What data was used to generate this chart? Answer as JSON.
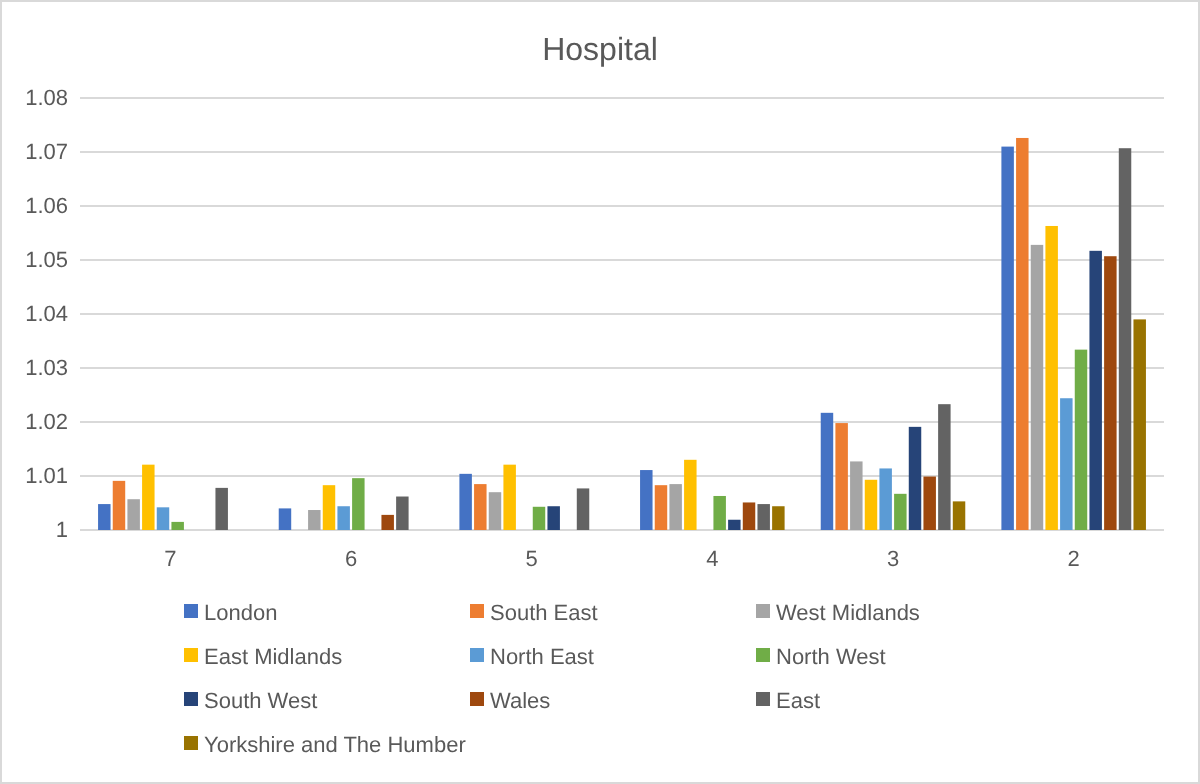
{
  "chart_data": {
    "type": "bar",
    "title": "Hospital",
    "categories": [
      "7",
      "6",
      "5",
      "4",
      "3",
      "2"
    ],
    "series": [
      {
        "name": "London",
        "color": "#4472c4",
        "values": [
          1.0048,
          1.004,
          1.0104,
          1.0111,
          1.0217,
          1.071
        ]
      },
      {
        "name": "South East",
        "color": "#ed7d31",
        "values": [
          1.0091,
          null,
          1.0085,
          1.0083,
          1.0198,
          1.0726
        ]
      },
      {
        "name": "West Midlands",
        "color": "#a5a5a5",
        "values": [
          1.0057,
          1.0037,
          1.007,
          1.0085,
          1.0127,
          1.0528
        ]
      },
      {
        "name": "East Midlands",
        "color": "#ffc000",
        "values": [
          1.0121,
          1.0083,
          1.0121,
          1.013,
          1.0093,
          1.0563
        ]
      },
      {
        "name": "North East",
        "color": "#5b9bd5",
        "values": [
          1.0042,
          1.0044,
          null,
          null,
          1.0114,
          1.0244
        ]
      },
      {
        "name": "North West",
        "color": "#70ad47",
        "values": [
          1.0015,
          1.0096,
          1.0043,
          1.0063,
          1.0067,
          1.0334
        ]
      },
      {
        "name": "South West",
        "color": "#264478",
        "values": [
          null,
          null,
          1.0044,
          1.0019,
          1.0191,
          1.0517
        ]
      },
      {
        "name": "Wales",
        "color": "#9e480e",
        "values": [
          null,
          1.0028,
          null,
          1.0051,
          1.0099,
          1.0507
        ]
      },
      {
        "name": "East",
        "color": "#636363",
        "values": [
          1.0078,
          1.0062,
          1.0077,
          1.0048,
          1.0233,
          1.0707
        ]
      },
      {
        "name": "Yorkshire and The Humber",
        "color": "#997300",
        "values": [
          null,
          null,
          null,
          1.0044,
          1.0053,
          1.039
        ]
      }
    ],
    "ylim": [
      1,
      1.08
    ],
    "yticks": [
      1,
      1.01,
      1.02,
      1.03,
      1.04,
      1.05,
      1.06,
      1.07,
      1.08
    ],
    "grid": "y",
    "legend": "bottom"
  }
}
